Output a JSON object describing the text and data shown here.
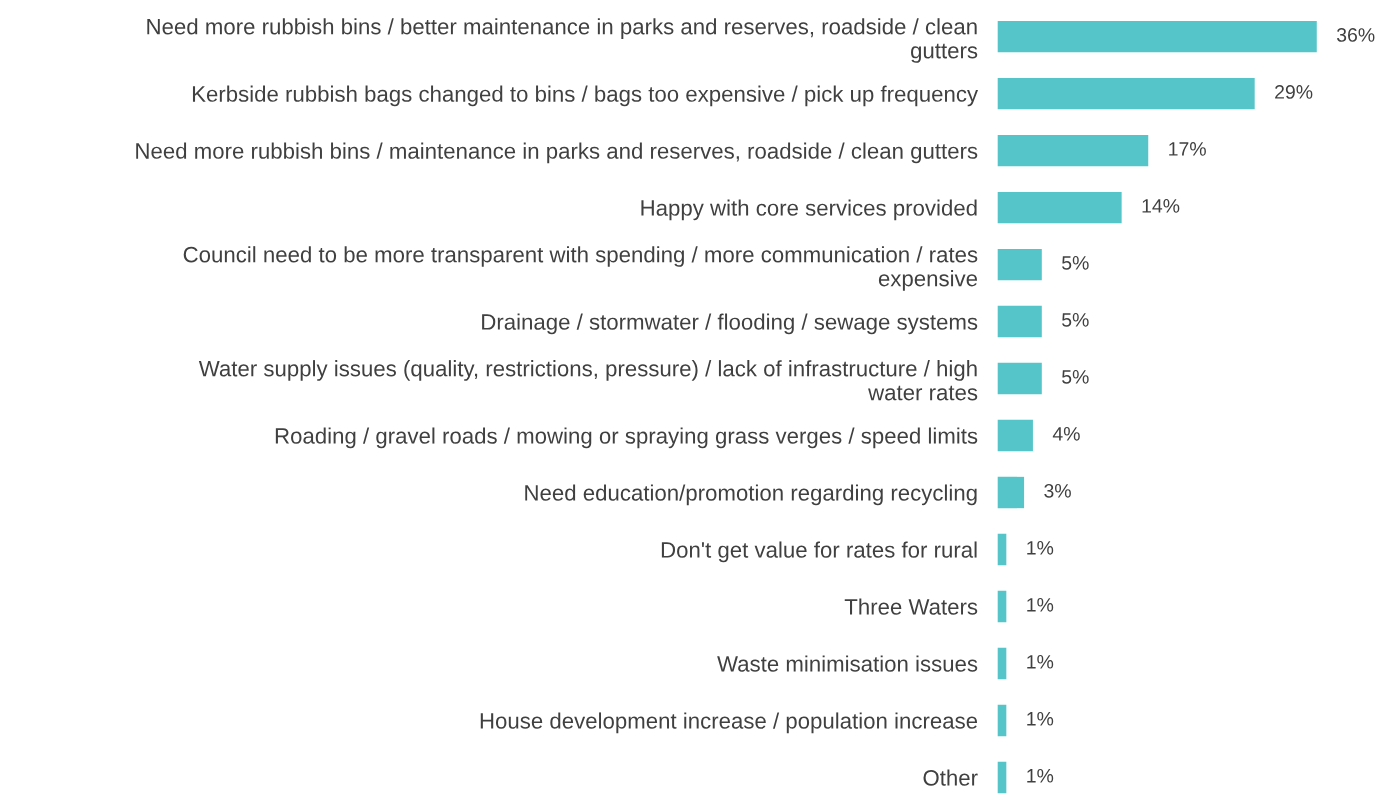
{
  "chart_data": {
    "type": "bar",
    "orientation": "horizontal",
    "categories": [
      "Need more rubbish bins / better maintenance in parks and reserves, roadside / clean\ngutters",
      "Kerbside rubbish bags changed to bins / bags too expensive / pick up frequency",
      "Need more rubbish bins / maintenance in parks and reserves, roadside / clean gutters",
      "Happy with core services provided",
      "Council need to be more transparent with spending / more communication / rates\nexpensive",
      "Drainage / stormwater / flooding / sewage systems",
      "Water supply issues (quality, restrictions, pressure) / lack of infrastructure / high\nwater rates",
      "Roading / gravel roads / mowing or spraying grass verges / speed limits",
      "Need education/promotion regarding recycling",
      "Don't get value for rates for rural",
      "Three Waters",
      "Waste minimisation issues",
      "House development increase / population increase",
      "Other"
    ],
    "values": [
      36,
      29,
      17,
      14,
      5,
      5,
      5,
      4,
      3,
      1,
      1,
      1,
      1,
      1
    ],
    "value_labels": [
      "36%",
      "29%",
      "17%",
      "14%",
      "5%",
      "5%",
      "5%",
      "4%",
      "3%",
      "1%",
      "1%",
      "1%",
      "1%",
      "1%"
    ],
    "color": "#56c5c9",
    "grid": false,
    "legend": false
  }
}
